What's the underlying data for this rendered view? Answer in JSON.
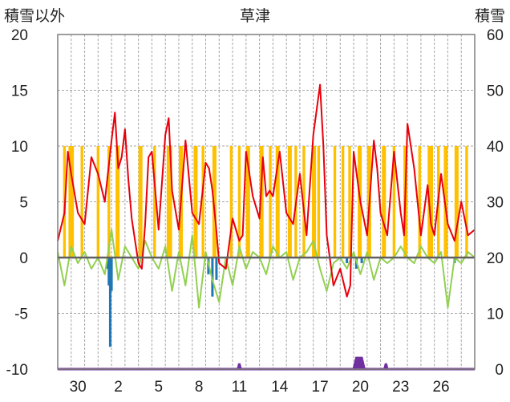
{
  "chart_data": {
    "type": "area",
    "title": "草津",
    "left_axis_label": "積雪以外",
    "right_axis_label": "積雪",
    "left_ylim": [
      -10,
      20
    ],
    "left_yticks": [
      -10,
      -5,
      0,
      5,
      10,
      15,
      20
    ],
    "right_ylim": [
      0,
      60
    ],
    "right_yticks": [
      0,
      10,
      20,
      30,
      40,
      50,
      60
    ],
    "xlim": [
      0,
      31
    ],
    "xtick_labels": [
      {
        "day": 1.5,
        "label": "30"
      },
      {
        "day": 4.5,
        "label": "2"
      },
      {
        "day": 7.5,
        "label": "5"
      },
      {
        "day": 10.5,
        "label": "8"
      },
      {
        "day": 13.5,
        "label": "11"
      },
      {
        "day": 16.5,
        "label": "14"
      },
      {
        "day": 19.5,
        "label": "17"
      },
      {
        "day": 22.5,
        "label": "20"
      },
      {
        "day": 25.5,
        "label": "23"
      },
      {
        "day": 28.5,
        "label": "26"
      }
    ],
    "grid": true,
    "colors": {
      "sunshine": "#FFC000",
      "temperature": "#E8000B",
      "dewpoint": "#92D050",
      "precipitation": "#1F77B4",
      "snow": "#7030A0",
      "zero_line": "#606060"
    },
    "series": [
      {
        "key": "sunshine",
        "axis": "left",
        "style": "bar",
        "intervals": [
          [
            0.4,
            0.6
          ],
          [
            0.8,
            1.2
          ],
          [
            1.7,
            1.9
          ],
          [
            2.9,
            3.1
          ],
          [
            3.7,
            3.9
          ],
          [
            4.3,
            4.6
          ],
          [
            6.0,
            6.3
          ],
          [
            7.1,
            7.3
          ],
          [
            8.1,
            8.5
          ],
          [
            9.0,
            9.3
          ],
          [
            10.1,
            10.4
          ],
          [
            10.7,
            10.9
          ],
          [
            11.5,
            11.8
          ],
          [
            12.8,
            13.0
          ],
          [
            13.4,
            13.6
          ],
          [
            14.0,
            14.3
          ],
          [
            15.0,
            15.3
          ],
          [
            15.7,
            15.9
          ],
          [
            16.2,
            16.5
          ],
          [
            17.1,
            17.4
          ],
          [
            17.6,
            17.8
          ],
          [
            18.2,
            18.4
          ],
          [
            18.9,
            19.2
          ],
          [
            19.3,
            19.5
          ],
          [
            20.5,
            20.7
          ],
          [
            21.1,
            21.3
          ],
          [
            21.6,
            21.8
          ],
          [
            22.3,
            22.6
          ],
          [
            23.0,
            23.3
          ],
          [
            24.1,
            24.4
          ],
          [
            24.9,
            25.1
          ],
          [
            25.7,
            26.0
          ],
          [
            26.8,
            27.0
          ],
          [
            27.5,
            27.9
          ],
          [
            28.2,
            28.4
          ],
          [
            28.7,
            29.0
          ],
          [
            29.5,
            29.8
          ],
          [
            30.3,
            30.5
          ]
        ]
      },
      {
        "key": "temperature",
        "axis": "left",
        "style": "line",
        "x": [
          0,
          0.5,
          0.75,
          1.0,
          1.5,
          2.0,
          2.5,
          3.0,
          3.5,
          4.0,
          4.25,
          4.5,
          4.75,
          5.0,
          5.25,
          5.5,
          6.0,
          6.25,
          6.5,
          6.75,
          7.0,
          7.5,
          8.0,
          8.25,
          8.5,
          9.0,
          9.5,
          10.0,
          10.5,
          11.0,
          11.25,
          11.5,
          11.75,
          12.0,
          12.5,
          13.0,
          13.5,
          13.75,
          14.0,
          14.5,
          15.0,
          15.25,
          15.5,
          15.75,
          16.0,
          16.5,
          17.0,
          17.5,
          18.0,
          18.5,
          19.0,
          19.5,
          19.75,
          20.0,
          20.5,
          21.0,
          21.5,
          21.75,
          22.0,
          22.5,
          23.0,
          23.5,
          23.75,
          24.0,
          24.5,
          25.0,
          25.5,
          25.75,
          26.0,
          26.5,
          27.0,
          27.5,
          27.75,
          28.0,
          28.5,
          29.0,
          29.5,
          30.0,
          30.5,
          31.0
        ],
        "values": [
          1.5,
          4.0,
          9.5,
          7.5,
          4.0,
          3.0,
          9.0,
          7.5,
          5.0,
          10.5,
          13.0,
          8.0,
          9.0,
          11.5,
          7.0,
          3.5,
          -0.5,
          -1.0,
          3.0,
          9.0,
          9.5,
          2.5,
          11.0,
          12.5,
          6.0,
          2.5,
          10.5,
          4.0,
          3.0,
          8.5,
          8.0,
          6.0,
          3.0,
          -0.5,
          -1.0,
          3.5,
          1.5,
          2.0,
          9.5,
          5.5,
          3.5,
          9.0,
          5.5,
          6.0,
          5.5,
          9.5,
          4.0,
          3.0,
          7.5,
          2.0,
          11.0,
          15.5,
          10.0,
          2.0,
          -2.5,
          -1.0,
          -3.5,
          -2.5,
          9.5,
          5.0,
          2.0,
          10.5,
          8.0,
          4.0,
          2.0,
          9.5,
          4.0,
          2.0,
          12.0,
          8.0,
          2.0,
          6.5,
          3.0,
          2.0,
          7.5,
          3.0,
          1.5,
          5.0,
          2.0,
          2.5
        ]
      },
      {
        "key": "dewpoint",
        "axis": "left",
        "style": "line",
        "x": [
          0,
          0.5,
          1.0,
          1.5,
          2.0,
          2.5,
          3.0,
          3.5,
          4.0,
          4.5,
          5.0,
          5.5,
          6.0,
          6.5,
          7.0,
          7.5,
          8.0,
          8.5,
          9.0,
          9.5,
          10.0,
          10.5,
          11.0,
          11.5,
          12.0,
          12.5,
          13.0,
          13.5,
          14.0,
          14.5,
          15.0,
          15.5,
          16.0,
          16.5,
          17.0,
          17.5,
          18.0,
          18.5,
          19.0,
          19.5,
          20.0,
          20.5,
          21.0,
          21.5,
          22.0,
          22.5,
          23.0,
          23.5,
          24.0,
          24.5,
          25.0,
          25.5,
          26.0,
          26.5,
          27.0,
          27.5,
          28.0,
          28.5,
          29.0,
          29.5,
          30.0,
          30.5,
          31.0
        ],
        "values": [
          0.5,
          -2.5,
          1.0,
          -0.5,
          0.5,
          -1.0,
          0.0,
          -1.5,
          2.5,
          -2.0,
          1.0,
          0.0,
          -1.0,
          1.5,
          0.0,
          -1.0,
          1.0,
          -3.0,
          0.5,
          -2.5,
          2.0,
          -4.5,
          0.5,
          -2.0,
          -4.0,
          0.0,
          -2.5,
          1.0,
          -1.0,
          0.5,
          0.0,
          -1.5,
          1.0,
          0.0,
          0.5,
          -2.0,
          0.0,
          0.5,
          1.5,
          -1.0,
          -3.0,
          -0.5,
          0.0,
          -1.0,
          0.5,
          -1.5,
          0.5,
          -2.0,
          0.0,
          -0.5,
          0.0,
          1.0,
          0.0,
          -0.5,
          1.0,
          0.0,
          -0.5,
          0.5,
          -4.5,
          0.0,
          -0.5,
          0.5,
          0.0
        ]
      },
      {
        "key": "precipitation",
        "axis": "left",
        "style": "bar",
        "x": [
          3.7,
          3.8,
          3.9,
          4.0,
          11.2,
          11.5,
          11.8,
          21.5,
          22.2,
          22.6,
          29.5
        ],
        "values": [
          -1.0,
          -2.5,
          -8.0,
          -3.0,
          -1.5,
          -3.5,
          -2.0,
          -0.5,
          -1.0,
          -0.5,
          -0.5
        ]
      },
      {
        "key": "snow",
        "axis": "right",
        "style": "area",
        "x": [
          0,
          13.4,
          13.5,
          13.6,
          22.0,
          22.1,
          22.2,
          22.4,
          22.6,
          22.7,
          22.8,
          24.3,
          24.4,
          24.5,
          31.0
        ],
        "values": [
          0,
          0,
          1,
          0,
          0,
          1,
          2,
          2,
          2,
          1,
          0,
          0,
          1,
          0,
          0
        ]
      }
    ]
  }
}
